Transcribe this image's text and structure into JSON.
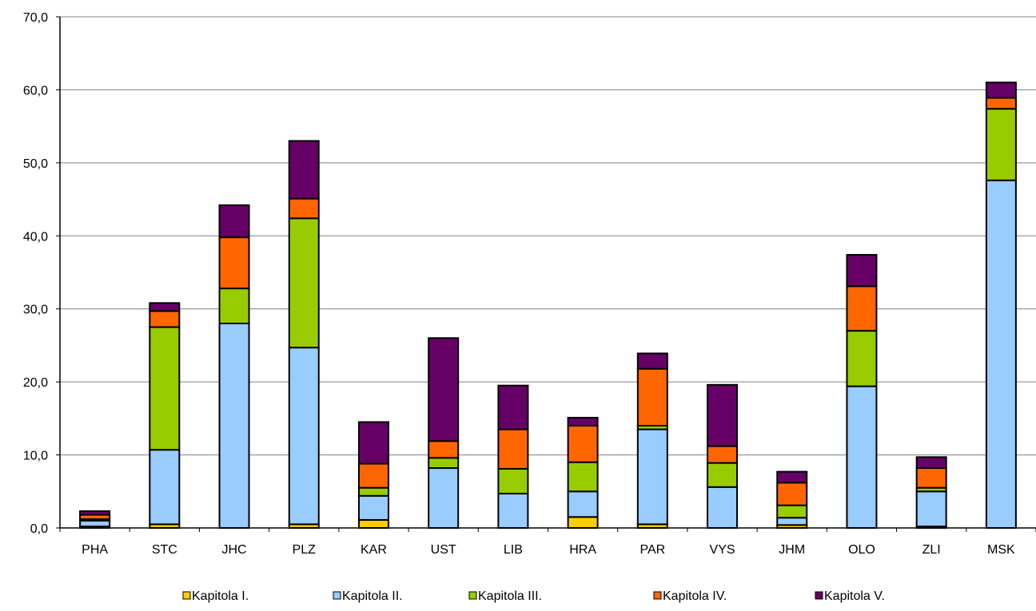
{
  "chart_data": {
    "type": "bar",
    "stacked": true,
    "categories": [
      "PHA",
      "STC",
      "JHC",
      "PLZ",
      "KAR",
      "UST",
      "LIB",
      "HRA",
      "PAR",
      "VYS",
      "JHM",
      "OLO",
      "ZLI",
      "MSK"
    ],
    "series": [
      {
        "name": "Kapitola I.",
        "color": "#ffcc00",
        "values": [
          0.2,
          0.5,
          0.0,
          0.5,
          1.1,
          0.0,
          0.0,
          1.5,
          0.5,
          0.0,
          0.4,
          0.0,
          0.2,
          0.0
        ]
      },
      {
        "name": "Kapitola II.",
        "color": "#99ccff",
        "values": [
          0.8,
          10.2,
          28.0,
          24.2,
          3.3,
          8.2,
          4.7,
          3.5,
          13.0,
          5.6,
          1.0,
          19.4,
          4.8,
          47.6
        ]
      },
      {
        "name": "Kapitola III.",
        "color": "#99cc00",
        "values": [
          0.2,
          16.8,
          4.8,
          17.7,
          1.1,
          1.4,
          3.4,
          4.0,
          0.5,
          3.3,
          1.7,
          7.6,
          0.5,
          9.8
        ]
      },
      {
        "name": "Kapitola IV.",
        "color": "#ff6600",
        "values": [
          0.6,
          2.2,
          7.0,
          2.7,
          3.3,
          2.3,
          5.4,
          5.0,
          7.8,
          2.3,
          3.1,
          6.1,
          2.7,
          1.5
        ]
      },
      {
        "name": "Kapitola V.",
        "color": "#660066",
        "values": [
          0.5,
          1.1,
          4.4,
          7.9,
          5.7,
          14.1,
          6.0,
          1.1,
          2.1,
          8.4,
          1.5,
          4.3,
          1.5,
          2.1
        ]
      }
    ],
    "ylim": [
      0,
      70
    ],
    "yticks": [
      "0,0",
      "10,0",
      "20,0",
      "30,0",
      "40,0",
      "50,0",
      "60,0",
      "70,0"
    ],
    "grid": true,
    "legend_position": "bottom",
    "title": "",
    "xlabel": "",
    "ylabel": ""
  }
}
